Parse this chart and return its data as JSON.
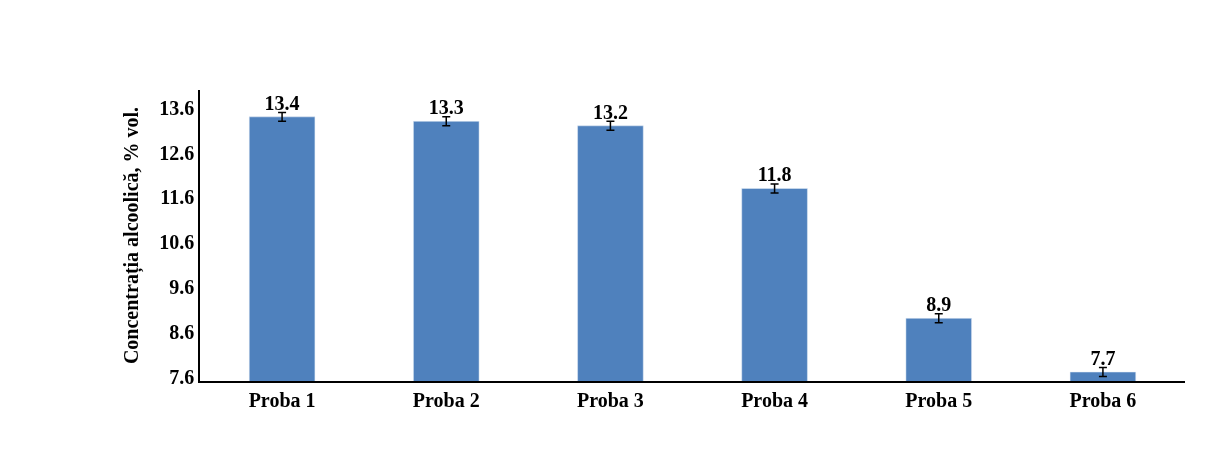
{
  "chart_data": {
    "type": "bar",
    "ylabel": "Concentrația alcoolică, % vol.",
    "categories": [
      "Proba 1",
      "Proba 2",
      "Proba 3",
      "Proba 4",
      "Proba 5",
      "Proba 6"
    ],
    "values": [
      13.4,
      13.3,
      13.2,
      11.8,
      8.9,
      7.7
    ],
    "errors": [
      0.1,
      0.1,
      0.1,
      0.1,
      0.1,
      0.1
    ],
    "color": "#4f81bd",
    "ylim": [
      7.5,
      14.0
    ],
    "yticks": [
      7.6,
      8.6,
      9.6,
      10.6,
      11.6,
      12.6,
      13.6
    ],
    "data_labels": true
  }
}
